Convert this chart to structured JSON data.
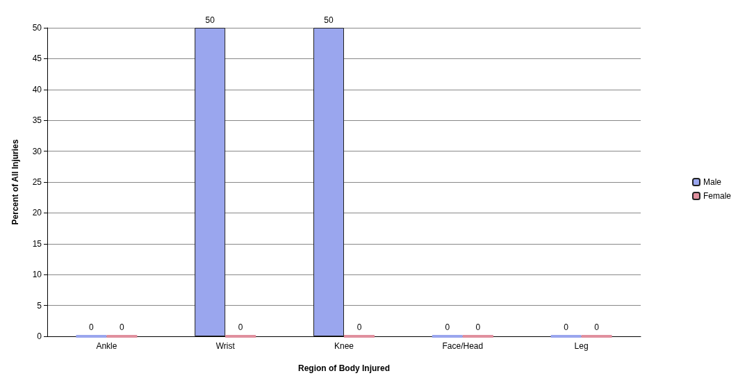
{
  "chart_data": {
    "type": "bar",
    "xlabel": "Region of Body Injured",
    "ylabel": "Percent of All Injuries",
    "categories": [
      "Ankle",
      "Wrist",
      "Knee",
      "Face/Head",
      "Leg"
    ],
    "series": [
      {
        "name": "Male",
        "color": "#9aa6ee",
        "values": [
          0,
          50,
          50,
          0,
          0
        ]
      },
      {
        "name": "Female",
        "color": "#e0909e",
        "values": [
          0,
          0,
          0,
          0,
          0
        ]
      }
    ],
    "ylim": [
      0,
      50
    ],
    "yticks": [
      0,
      5,
      10,
      15,
      20,
      25,
      30,
      35,
      40,
      45,
      50
    ],
    "grid": "y",
    "legend": "right",
    "data_labels": true
  }
}
